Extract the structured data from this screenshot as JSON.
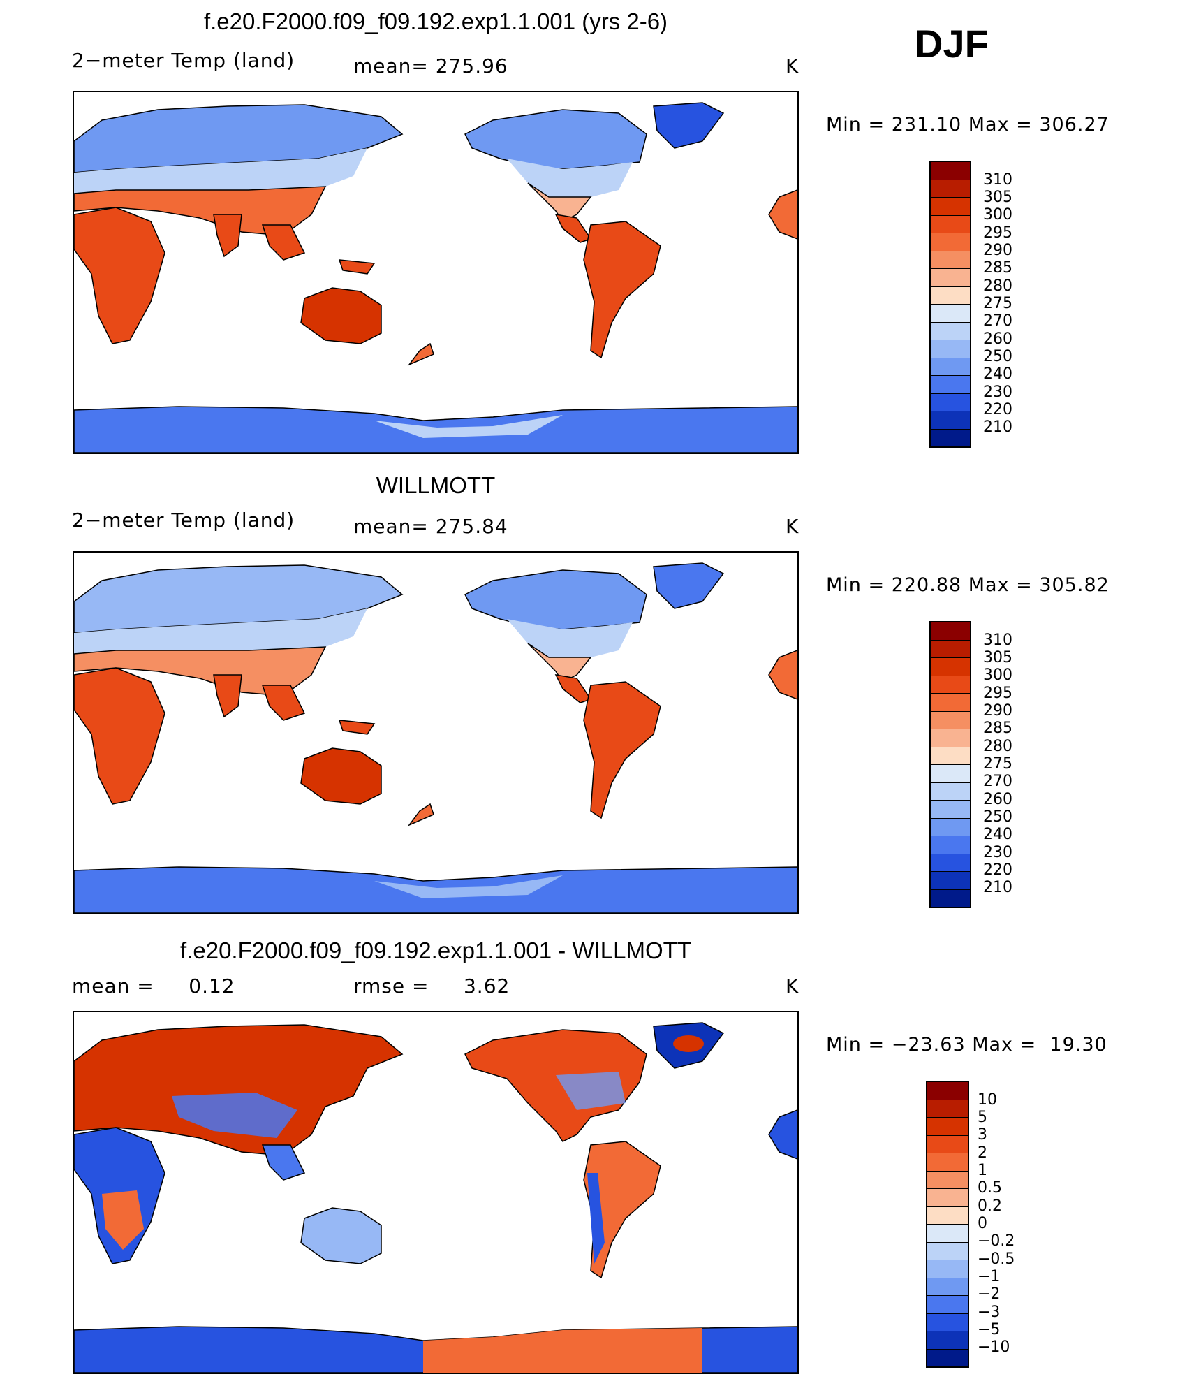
{
  "season": "DJF",
  "panels": [
    {
      "title": "f.e20.F2000.f09_f09.192.exp1.1.001 (yrs 2-6)",
      "left_label": "2−meter Temp (land)",
      "mid_label": "mean= 275.96",
      "units": "K",
      "minmax": "Min = 231.10 Max = 306.27",
      "colorbar": {
        "labels": [
          "310",
          "305",
          "300",
          "295",
          "290",
          "285",
          "280",
          "275",
          "270",
          "260",
          "250",
          "240",
          "230",
          "220",
          "210"
        ],
        "colors": [
          "#8b0000",
          "#b81d00",
          "#d63300",
          "#e84a17",
          "#f26a36",
          "#f58f62",
          "#f9b391",
          "#fdddc4",
          "#dbe8f8",
          "#bcd3f7",
          "#97b8f5",
          "#6f99f2",
          "#4a77ef",
          "#2753e0",
          "#0d33b8",
          "#001a8a"
        ]
      }
    },
    {
      "title": "WILLMOTT",
      "left_label": "2−meter Temp (land)",
      "mid_label": "mean= 275.84",
      "units": "K",
      "minmax": "Min = 220.88 Max = 305.82",
      "colorbar": {
        "labels": [
          "310",
          "305",
          "300",
          "295",
          "290",
          "285",
          "280",
          "275",
          "270",
          "260",
          "250",
          "240",
          "230",
          "220",
          "210"
        ],
        "colors": [
          "#8b0000",
          "#b81d00",
          "#d63300",
          "#e84a17",
          "#f26a36",
          "#f58f62",
          "#f9b391",
          "#fdddc4",
          "#dbe8f8",
          "#bcd3f7",
          "#97b8f5",
          "#6f99f2",
          "#4a77ef",
          "#2753e0",
          "#0d33b8",
          "#001a8a"
        ]
      }
    },
    {
      "title": "f.e20.F2000.f09_f09.192.exp1.1.001 - WILLMOTT",
      "left_label": "mean =     0.12",
      "mid_label": "rmse =     3.62",
      "units": "K",
      "minmax": "Min = −23.63 Max =  19.30",
      "colorbar": {
        "labels": [
          "10",
          "5",
          "3",
          "2",
          "1",
          "0.5",
          "0.2",
          "0",
          "−0.2",
          "−0.5",
          "−1",
          "−2",
          "−3",
          "−5",
          "−10"
        ],
        "colors": [
          "#8b0000",
          "#b81d00",
          "#d63300",
          "#e84a17",
          "#f26a36",
          "#f58f62",
          "#f9b391",
          "#fdddc4",
          "#dbe8f8",
          "#bcd3f7",
          "#97b8f5",
          "#6f99f2",
          "#4a77ef",
          "#2753e0",
          "#0d33b8",
          "#001a8a"
        ]
      }
    }
  ]
}
